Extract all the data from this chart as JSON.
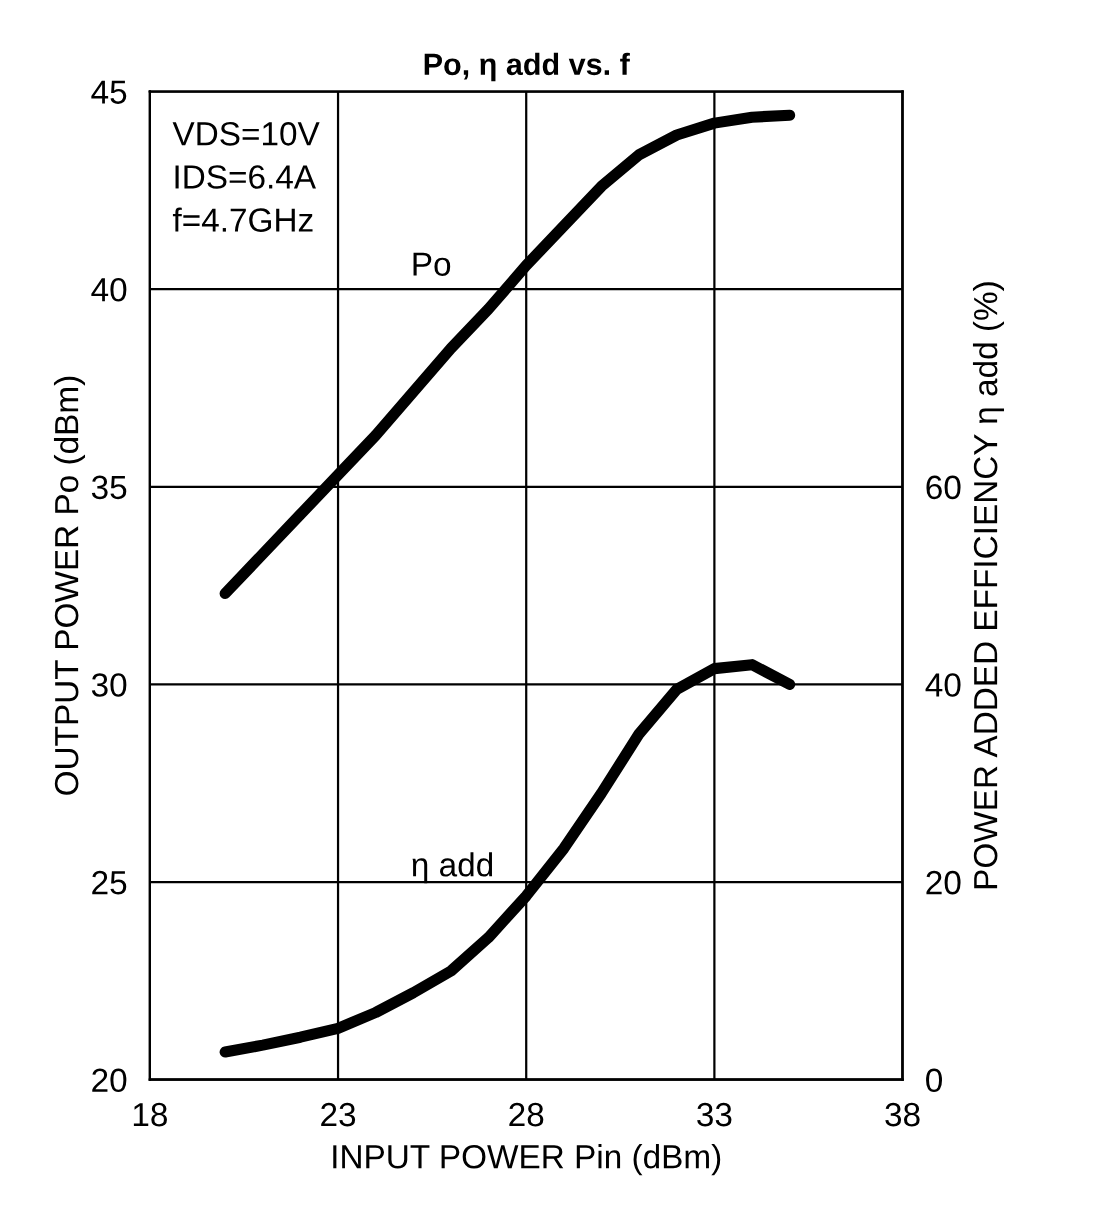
{
  "chart_data": {
    "type": "line",
    "title": "Po, η add vs. f",
    "xlabel": "INPUT POWER Pin (dBm)",
    "ylabel": "OUTPUT POWER Po (dBm)",
    "y2label": "POWER ADDED EFFICIENCY η add (%)",
    "annotations": [
      "VDS=10V\nIDS=6.4A\nf=4.7GHz"
    ],
    "xlim": [
      18,
      38
    ],
    "xticks": [
      18,
      23,
      28,
      33,
      38
    ],
    "ylim": [
      20,
      45
    ],
    "yticks": [
      20,
      25,
      30,
      35,
      40,
      45
    ],
    "y2lim": [
      0,
      100
    ],
    "y2ticks": [
      0,
      20,
      40,
      60
    ],
    "grid": true,
    "legend": false,
    "line_style": "solid",
    "marker": "none",
    "series": [
      {
        "name": "Po",
        "color": "#000000",
        "x": [
          20,
          21,
          22,
          23,
          24,
          25,
          26,
          27,
          28,
          29,
          30,
          31,
          32,
          33,
          34,
          35
        ],
        "values": [
          32.3,
          33.3,
          34.3,
          35.3,
          36.3,
          37.4,
          38.5,
          39.5,
          40.6,
          41.6,
          42.6,
          43.4,
          43.9,
          44.2,
          44.35,
          44.4
        ]
      },
      {
        "name": "η add",
        "color": "#000000",
        "axis": "y2",
        "x": [
          20,
          21,
          22,
          23,
          24,
          25,
          26,
          27,
          28,
          29,
          30,
          31,
          32,
          33,
          34,
          35
        ],
        "values": [
          2.8,
          3.5,
          4.3,
          5.2,
          6.8,
          8.8,
          11,
          14.4,
          18.6,
          23.4,
          29,
          35,
          39.5,
          41.6,
          42,
          40
        ]
      }
    ]
  }
}
